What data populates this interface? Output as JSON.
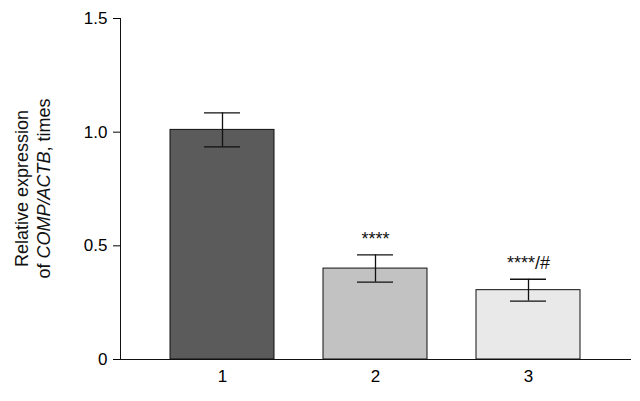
{
  "chart_data": {
    "type": "bar",
    "y_label": "Relative expression of COMP/ACTB, times",
    "categories": [
      "1",
      "2",
      "3"
    ],
    "values": [
      1.01,
      0.4,
      0.305
    ],
    "errors": [
      0.075,
      0.06,
      0.048
    ],
    "colors": [
      "#5b5b5b",
      "#c2c2c2",
      "#e9e9e9"
    ],
    "ylim": [
      0,
      1.5
    ],
    "yticks": [
      0,
      0.5,
      {
        "value": 1.0,
        "label": "1.0"
      },
      1.5
    ],
    "annotations": [
      {
        "category": "2",
        "text": "****"
      },
      {
        "category": "3",
        "text": "****/#"
      }
    ]
  }
}
